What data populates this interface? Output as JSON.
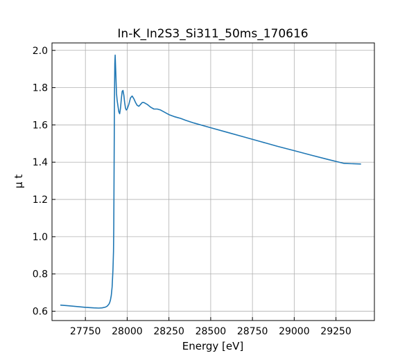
{
  "chart_data": {
    "type": "line",
    "title": "In-K_In2S3_Si311_50ms_170616",
    "xlabel": "Energy [eV]",
    "ylabel": "μ t",
    "xlim": [
      27550,
      29480
    ],
    "ylim": [
      0.55,
      2.04
    ],
    "xticks": [
      27750,
      28000,
      28250,
      28500,
      28750,
      29000,
      29250
    ],
    "yticks": [
      0.6,
      0.8,
      1.0,
      1.2,
      1.4,
      1.6,
      1.8,
      2.0
    ],
    "xtick_labels": [
      "27750",
      "28000",
      "28250",
      "28500",
      "28750",
      "29000",
      "29250"
    ],
    "ytick_labels": [
      "0.6",
      "0.8",
      "1.0",
      "1.2",
      "1.4",
      "1.6",
      "1.8",
      "2.0"
    ],
    "grid": true,
    "legend": "none",
    "series": [
      {
        "color": "#1f77b4",
        "x": [
          27600,
          27650,
          27700,
          27750,
          27800,
          27830,
          27850,
          27870,
          27880,
          27890,
          27895,
          27900,
          27905,
          27910,
          27915,
          27918,
          27920,
          27922,
          27924,
          27926,
          27928,
          27932,
          27936,
          27940,
          27945,
          27950,
          27955,
          27960,
          27965,
          27970,
          27975,
          27980,
          27985,
          27990,
          27995,
          28000,
          28010,
          28020,
          28030,
          28040,
          28050,
          28060,
          28070,
          28080,
          28090,
          28100,
          28120,
          28140,
          28160,
          28180,
          28200,
          28220,
          28250,
          28280,
          28300,
          28320,
          28350,
          28400,
          28500,
          28600,
          28700,
          28800,
          28900,
          29000,
          29100,
          29200,
          29300,
          29400
        ],
        "y": [
          0.633,
          0.629,
          0.625,
          0.621,
          0.618,
          0.617,
          0.618,
          0.622,
          0.627,
          0.637,
          0.645,
          0.66,
          0.685,
          0.73,
          0.82,
          0.92,
          1.05,
          1.4,
          1.75,
          1.93,
          1.975,
          1.88,
          1.77,
          1.73,
          1.7,
          1.67,
          1.66,
          1.69,
          1.74,
          1.78,
          1.785,
          1.76,
          1.72,
          1.69,
          1.68,
          1.685,
          1.71,
          1.745,
          1.755,
          1.74,
          1.72,
          1.705,
          1.7,
          1.71,
          1.72,
          1.72,
          1.71,
          1.695,
          1.685,
          1.685,
          1.68,
          1.67,
          1.655,
          1.645,
          1.64,
          1.635,
          1.625,
          1.61,
          1.585,
          1.56,
          1.535,
          1.51,
          1.485,
          1.462,
          1.438,
          1.415,
          1.393,
          1.39
        ]
      }
    ]
  }
}
